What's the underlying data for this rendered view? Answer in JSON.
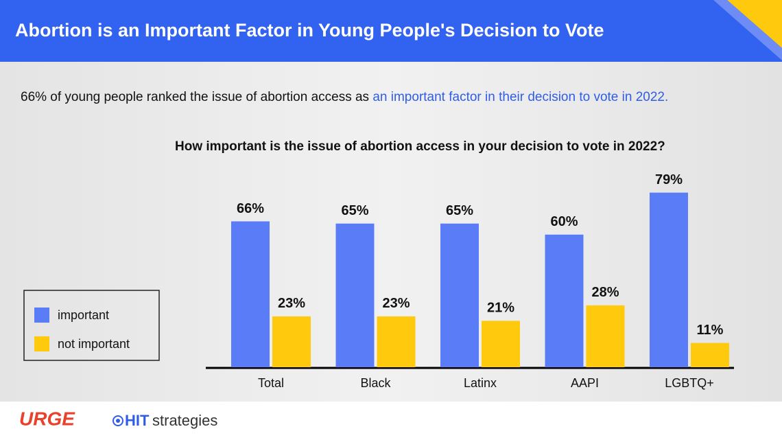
{
  "title": "Abortion is an Important Factor in Young People's Decision to Vote",
  "subtitle": {
    "lead": "66% of young people ranked the issue of abortion access as ",
    "highlight": "an important factor in their decision to vote in 2022."
  },
  "logos": {
    "urge": "URGE",
    "hit": "HIT",
    "strategies": "strategies"
  },
  "chart_data": {
    "type": "bar",
    "title": "How important is the issue of abortion access in your decision to vote in 2022?",
    "categories": [
      "Total",
      "Black",
      "Latinx",
      "AAPI",
      "LGBTQ+"
    ],
    "series": [
      {
        "name": "important",
        "color": "#5b7cf7",
        "values": [
          66,
          65,
          65,
          60,
          79
        ],
        "value_labels": [
          "66%",
          "65%",
          "65%",
          "60%",
          "79%"
        ]
      },
      {
        "name": "not important",
        "color": "#ffc90e",
        "values": [
          23,
          23,
          21,
          28,
          11
        ],
        "value_labels": [
          "23%",
          "23%",
          "21%",
          "28%",
          "11%"
        ]
      }
    ],
    "legend": "left"
  }
}
